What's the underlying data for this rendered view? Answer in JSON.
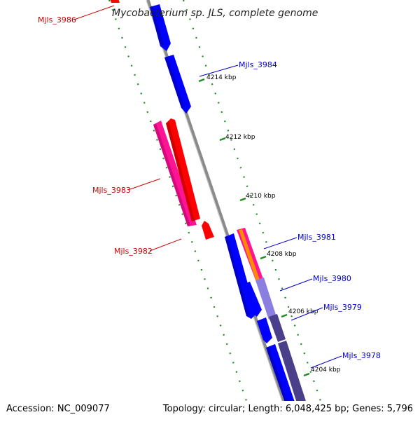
{
  "title": "Mycobacterium sp. JLS, complete genome",
  "footer": {
    "accession": "Accession: NC_009077",
    "topology": "Topology: circular; Length: 6,048,425 bp; Genes: 5,796"
  },
  "colors": {
    "backbone": "#8a8a8a",
    "tick": "#228b22",
    "forward_gene": "#0000ff",
    "reverse_gene": "#ff0000",
    "pink_gene": "#ff1493",
    "lavender_gene": "#8a7fe0",
    "dark_purple_gene": "#4a3f8a",
    "orange_gene": "#ff8c00",
    "forward_label": "#0000cc",
    "reverse_label": "#cc0000"
  },
  "kbp_marks": [
    "4214 kbp",
    "4212 kbp",
    "4210 kbp",
    "4208 kbp",
    "4206 kbp",
    "4204 kbp"
  ],
  "gene_labels": [
    {
      "name": "Mjls_3986",
      "strand": "reverse"
    },
    {
      "name": "Mjls_3984",
      "strand": "forward"
    },
    {
      "name": "Mjls_3983",
      "strand": "reverse"
    },
    {
      "name": "Mjls_3982",
      "strand": "reverse"
    },
    {
      "name": "Mjls_3981",
      "strand": "forward"
    },
    {
      "name": "Mjls_3980",
      "strand": "forward"
    },
    {
      "name": "Mjls_3979",
      "strand": "forward"
    },
    {
      "name": "Mjls_3978",
      "strand": "forward"
    }
  ]
}
